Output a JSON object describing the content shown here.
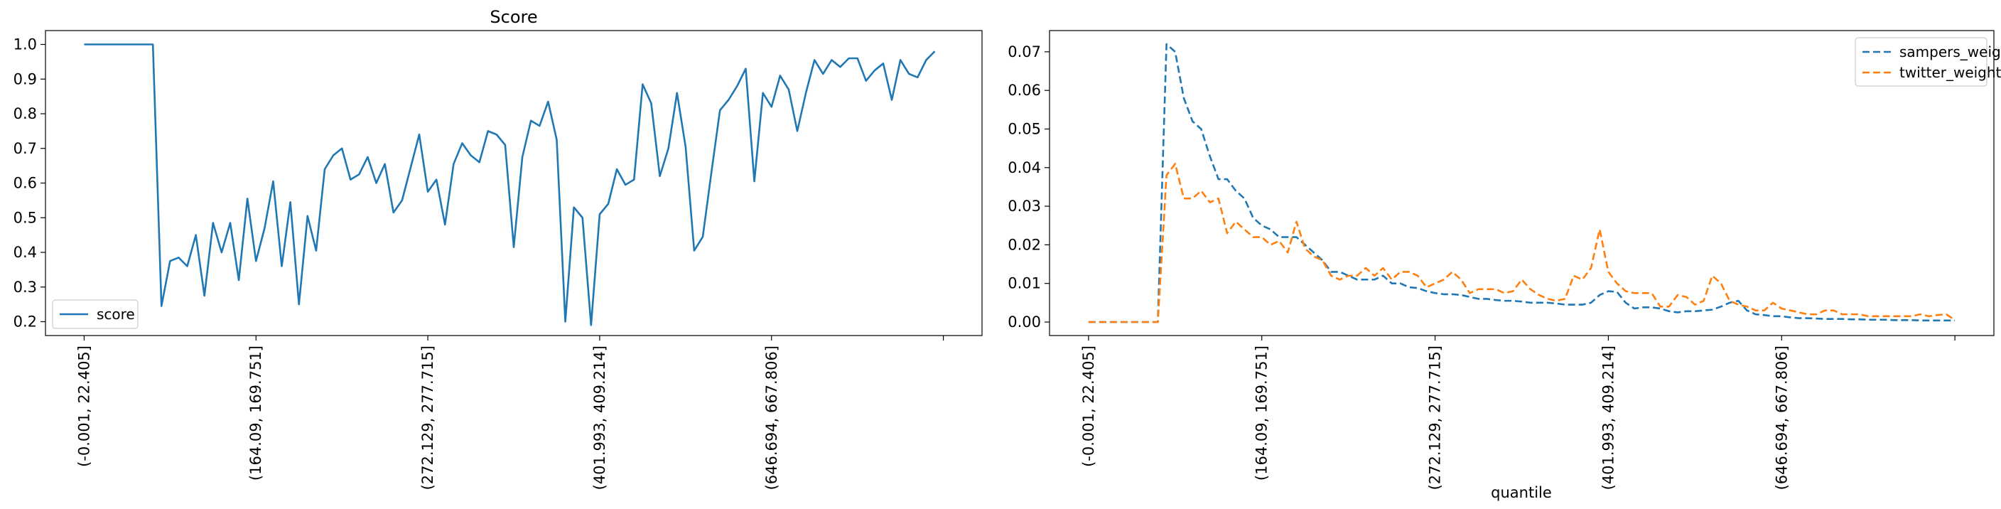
{
  "chart_data": [
    {
      "type": "line",
      "title": "Score",
      "xlabel": "",
      "ylabel": "",
      "ylim": [
        0.16,
        1.04
      ],
      "yticks": [
        0.2,
        0.3,
        0.4,
        0.5,
        0.6,
        0.7,
        0.8,
        0.9,
        1.0
      ],
      "ytick_labels": [
        "0.2",
        "0.3",
        "0.4",
        "0.5",
        "0.6",
        "0.7",
        "0.8",
        "0.9",
        "1.0"
      ],
      "xticks": [
        0,
        20,
        40,
        60,
        80,
        100
      ],
      "xtick_labels": [
        "(-0.001, 22.405]",
        "(164.09, 169.751]",
        "(272.129, 277.715]",
        "(401.993, 409.214]",
        "(646.694, 667.806]",
        ""
      ],
      "xlim": [
        -4.5,
        104.5
      ],
      "grid": false,
      "legend": "lower-left",
      "series": [
        {
          "name": "score",
          "color": "#1f77b4",
          "dash": "solid",
          "values": [
            1.0,
            1.0,
            1.0,
            1.0,
            1.0,
            1.0,
            1.0,
            1.0,
            1.0,
            0.245,
            0.375,
            0.385,
            0.36,
            0.45,
            0.275,
            0.485,
            0.4,
            0.485,
            0.32,
            0.555,
            0.375,
            0.47,
            0.605,
            0.36,
            0.545,
            0.25,
            0.505,
            0.405,
            0.64,
            0.68,
            0.7,
            0.61,
            0.625,
            0.675,
            0.6,
            0.655,
            0.515,
            0.55,
            0.645,
            0.74,
            0.575,
            0.61,
            0.48,
            0.655,
            0.715,
            0.68,
            0.66,
            0.75,
            0.74,
            0.71,
            0.415,
            0.675,
            0.78,
            0.765,
            0.835,
            0.725,
            0.2,
            0.53,
            0.5,
            0.19,
            0.51,
            0.54,
            0.64,
            0.595,
            0.61,
            0.885,
            0.83,
            0.62,
            0.7,
            0.86,
            0.705,
            0.405,
            0.445,
            0.63,
            0.81,
            0.84,
            0.88,
            0.93,
            0.605,
            0.86,
            0.82,
            0.91,
            0.87,
            0.75,
            0.86,
            0.955,
            0.915,
            0.955,
            0.935,
            0.96,
            0.96,
            0.895,
            0.925,
            0.945,
            0.84,
            0.955,
            0.915,
            0.905,
            0.955,
            0.98
          ]
        }
      ]
    },
    {
      "type": "line",
      "title": "",
      "xlabel": "quantile",
      "ylabel": "",
      "ylim": [
        -0.0035,
        0.0755
      ],
      "yticks": [
        0.0,
        0.01,
        0.02,
        0.03,
        0.04,
        0.05,
        0.06,
        0.07
      ],
      "ytick_labels": [
        "0.00",
        "0.01",
        "0.02",
        "0.03",
        "0.04",
        "0.05",
        "0.06",
        "0.07"
      ],
      "xticks": [
        0,
        20,
        40,
        60,
        80,
        100
      ],
      "xtick_labels": [
        "(-0.001, 22.405]",
        "(164.09, 169.751]",
        "(272.129, 277.715]",
        "(401.993, 409.214]",
        "(646.694, 667.806]",
        ""
      ],
      "xlim": [
        -4.5,
        104.5
      ],
      "grid": false,
      "legend": "top-right",
      "series": [
        {
          "name": "sampers_weight",
          "color": "#1f77b4",
          "dash": "dashed",
          "values": [
            0,
            0,
            0,
            0,
            0,
            0,
            0,
            0,
            0,
            0.072,
            0.07,
            0.058,
            0.052,
            0.05,
            0.043,
            0.037,
            0.037,
            0.034,
            0.032,
            0.027,
            0.025,
            0.024,
            0.022,
            0.022,
            0.022,
            0.02,
            0.018,
            0.016,
            0.013,
            0.013,
            0.012,
            0.011,
            0.011,
            0.011,
            0.012,
            0.01,
            0.01,
            0.009,
            0.0088,
            0.008,
            0.0075,
            0.0072,
            0.0072,
            0.007,
            0.0065,
            0.006,
            0.006,
            0.0057,
            0.0055,
            0.0055,
            0.0053,
            0.005,
            0.005,
            0.005,
            0.0048,
            0.0045,
            0.0045,
            0.0045,
            0.005,
            0.007,
            0.008,
            0.0078,
            0.005,
            0.0035,
            0.0038,
            0.0038,
            0.0035,
            0.0028,
            0.0025,
            0.0028,
            0.0028,
            0.003,
            0.0032,
            0.004,
            0.005,
            0.0055,
            0.003,
            0.002,
            0.0018,
            0.0015,
            0.0015,
            0.0012,
            0.001,
            0.001,
            0.0009,
            0.0008,
            0.0008,
            0.0008,
            0.0007,
            0.0007,
            0.0006,
            0.0006,
            0.0006,
            0.0005,
            0.0005,
            0.0005,
            0.0004,
            0.0004,
            0.0004,
            0.0004,
            0.0004
          ]
        },
        {
          "name": "twitter_weight",
          "color": "#ff7f0e",
          "dash": "dashed",
          "values": [
            0,
            0,
            0,
            0,
            0,
            0,
            0,
            0,
            0,
            0.038,
            0.041,
            0.032,
            0.032,
            0.034,
            0.031,
            0.032,
            0.023,
            0.026,
            0.024,
            0.022,
            0.022,
            0.02,
            0.021,
            0.018,
            0.026,
            0.019,
            0.017,
            0.016,
            0.012,
            0.011,
            0.012,
            0.012,
            0.014,
            0.012,
            0.014,
            0.011,
            0.013,
            0.013,
            0.012,
            0.009,
            0.01,
            0.011,
            0.013,
            0.011,
            0.0075,
            0.0085,
            0.0085,
            0.0085,
            0.0075,
            0.008,
            0.011,
            0.0085,
            0.007,
            0.006,
            0.0055,
            0.006,
            0.012,
            0.011,
            0.014,
            0.024,
            0.013,
            0.01,
            0.008,
            0.0075,
            0.0075,
            0.0075,
            0.004,
            0.004,
            0.007,
            0.0065,
            0.0045,
            0.0055,
            0.012,
            0.01,
            0.0055,
            0.0045,
            0.004,
            0.003,
            0.003,
            0.005,
            0.0035,
            0.003,
            0.0025,
            0.002,
            0.002,
            0.003,
            0.003,
            0.002,
            0.002,
            0.002,
            0.0015,
            0.0015,
            0.0015,
            0.0015,
            0.0015,
            0.0015,
            0.002,
            0.0015,
            0.0018,
            0.002,
            0.0005
          ]
        }
      ]
    }
  ]
}
